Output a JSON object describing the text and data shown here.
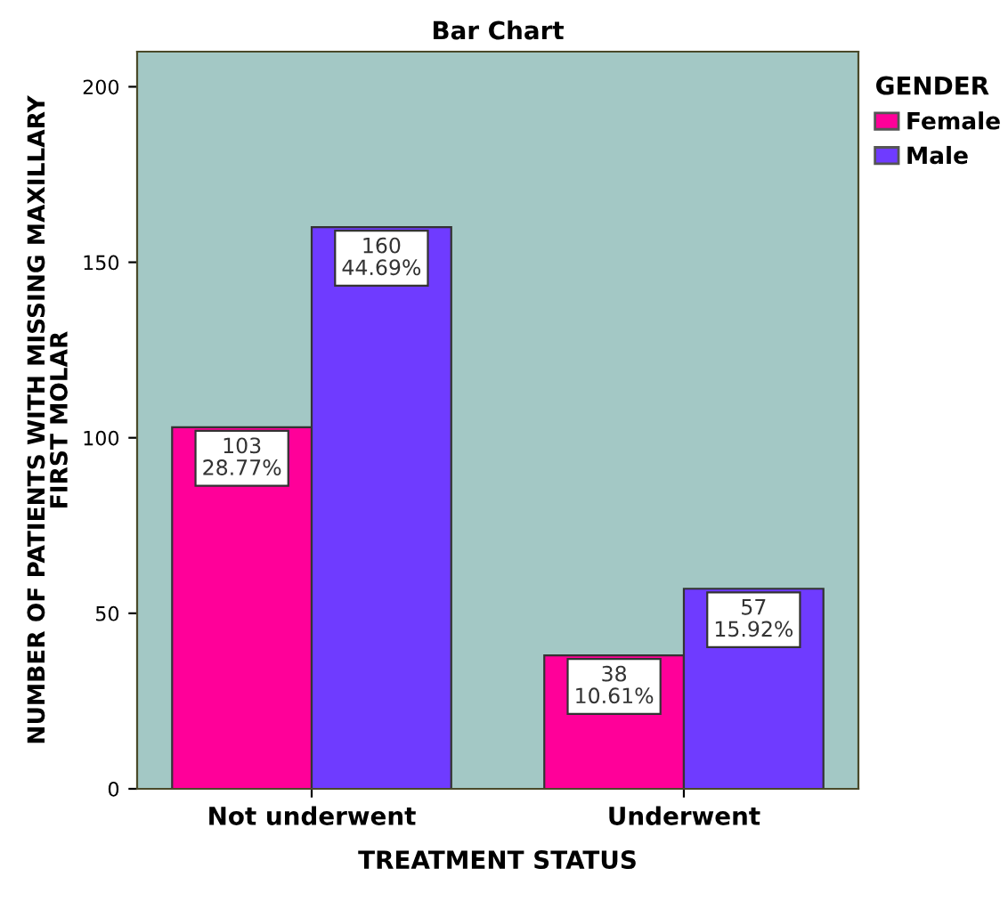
{
  "chart_data": {
    "type": "bar",
    "title": "Bar Chart",
    "xlabel": "TREATMENT STATUS",
    "ylabel": "NUMBER OF PATIENTS WITH MISSING MAXILLARY\nFIRST MOLAR",
    "legend_title": "GENDER",
    "categories": [
      "Not underwent",
      "Underwent"
    ],
    "series": [
      {
        "name": "Female",
        "color": "#ff0099",
        "values": [
          103,
          38
        ],
        "value_labels": [
          "103\n28.77%",
          "38\n10.61%"
        ]
      },
      {
        "name": "Male",
        "color": "#6f3bff",
        "values": [
          160,
          57
        ],
        "value_labels": [
          "160\n44.69%",
          "57\n15.92%"
        ]
      }
    ],
    "ylim": [
      0,
      210
    ],
    "yticks": [
      0,
      50,
      100,
      150,
      200
    ],
    "grid": false,
    "legend": "right"
  }
}
